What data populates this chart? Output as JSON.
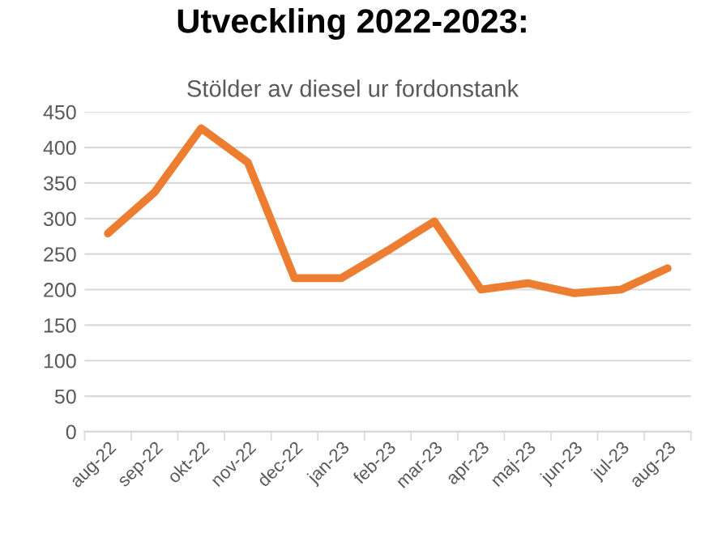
{
  "chart_data": {
    "type": "line",
    "title": "Utveckling 2022-2023:",
    "subtitle": "Stölder av diesel ur fordonstank",
    "categories": [
      "aug-22",
      "sep-22",
      "okt-22",
      "nov-22",
      "dec-22",
      "jan-23",
      "feb-23",
      "mar-23",
      "apr-23",
      "maj-23",
      "jun-23",
      "jul-23",
      "aug-23"
    ],
    "series": [
      {
        "color": "#ed7d31",
        "values": [
          279,
          337,
          427,
          379,
          216,
          216,
          255,
          296,
          200,
          209,
          195,
          200,
          230
        ]
      }
    ],
    "ylim": [
      0,
      450
    ],
    "yticks": [
      0,
      50,
      100,
      150,
      200,
      250,
      300,
      350,
      400,
      450
    ],
    "grid": "y",
    "marker": "none",
    "line_style": "solid"
  }
}
